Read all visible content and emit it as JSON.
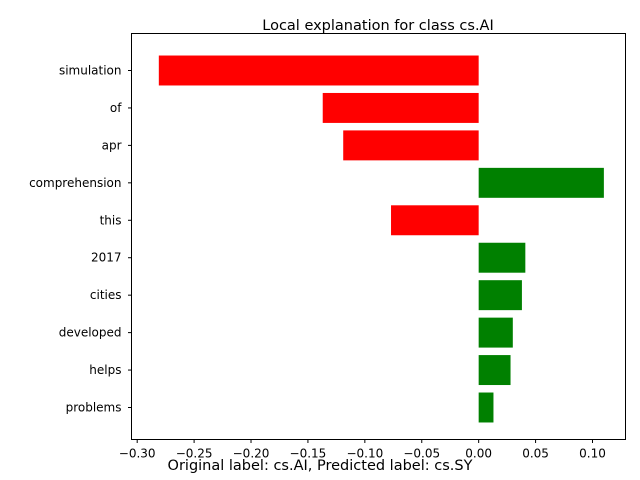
{
  "chart_data": {
    "type": "bar",
    "orientation": "horizontal",
    "title": "Local explanation for class cs.AI",
    "xlabel": "",
    "ylabel": "",
    "categories": [
      "problems",
      "helps",
      "developed",
      "cities",
      "2017",
      "this",
      "comprehension",
      "apr",
      "of",
      "simulation"
    ],
    "values": [
      0.013,
      0.028,
      0.03,
      0.038,
      0.041,
      -0.077,
      0.11,
      -0.119,
      -0.137,
      -0.281
    ],
    "xlim": [
      -0.305,
      0.129
    ],
    "xticks": [
      -0.3,
      -0.25,
      -0.2,
      -0.15,
      -0.1,
      -0.05,
      0.0,
      0.05,
      0.1
    ],
    "xtick_labels": [
      "−0.30",
      "−0.25",
      "−0.20",
      "−0.15",
      "−0.10",
      "−0.05",
      "0.00",
      "0.05",
      "0.10"
    ],
    "grid": false,
    "colors": {
      "positive": "#008000",
      "negative": "#ff0000"
    }
  },
  "caption": "Original label: cs.AI, Predicted label: cs.SY"
}
